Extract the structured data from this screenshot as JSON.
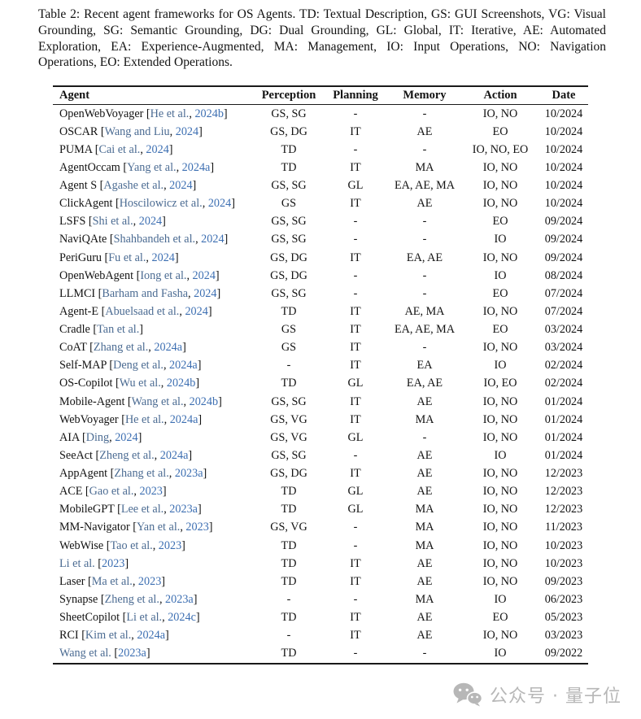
{
  "caption": "Table 2: Recent agent frameworks for OS Agents. TD: Textual Description, GS: GUI Screenshots, VG: Visual Grounding, SG: Semantic Grounding, DG: Dual Grounding, GL: Global, IT: Iterative, AE: Automated Exploration, EA: Experience-Augmented, MA: Management, IO: Input Operations, NO: Navigation Operations, EO: Extended Operations.",
  "colors": {
    "text": "#121212",
    "citation_author": "#4b6b92",
    "citation_year": "#3d6fb2",
    "rule": "#1a1a1a",
    "watermark": "#b7b7b7"
  },
  "table": {
    "columns": [
      "Agent",
      "Perception",
      "Planning",
      "Memory",
      "Action",
      "Date"
    ],
    "rows": [
      {
        "agent": [
          [
            "OpenWebVoyager [",
            "k"
          ],
          [
            "He et al.",
            "a"
          ],
          [
            ", ",
            "k"
          ],
          [
            "2024b",
            "y"
          ],
          [
            "]",
            "k"
          ]
        ],
        "perception": "GS, SG",
        "planning": "-",
        "memory": "-",
        "action": "IO, NO",
        "date": "10/2024"
      },
      {
        "agent": [
          [
            "OSCAR [",
            "k"
          ],
          [
            "Wang and Liu",
            "a"
          ],
          [
            ", ",
            "k"
          ],
          [
            "2024",
            "y"
          ],
          [
            "]",
            "k"
          ]
        ],
        "perception": "GS, DG",
        "planning": "IT",
        "memory": "AE",
        "action": "EO",
        "date": "10/2024"
      },
      {
        "agent": [
          [
            "PUMA [",
            "k"
          ],
          [
            "Cai et al.",
            "a"
          ],
          [
            ", ",
            "k"
          ],
          [
            "2024",
            "y"
          ],
          [
            "]",
            "k"
          ]
        ],
        "perception": "TD",
        "planning": "-",
        "memory": "-",
        "action": "IO, NO, EO",
        "date": "10/2024"
      },
      {
        "agent": [
          [
            "AgentOccam [",
            "k"
          ],
          [
            "Yang et al.",
            "a"
          ],
          [
            ", ",
            "k"
          ],
          [
            "2024a",
            "y"
          ],
          [
            "]",
            "k"
          ]
        ],
        "perception": "TD",
        "planning": "IT",
        "memory": "MA",
        "action": "IO, NO",
        "date": "10/2024"
      },
      {
        "agent": [
          [
            "Agent S [",
            "k"
          ],
          [
            "Agashe et al.",
            "a"
          ],
          [
            ", ",
            "k"
          ],
          [
            "2024",
            "y"
          ],
          [
            "]",
            "k"
          ]
        ],
        "perception": "GS, SG",
        "planning": "GL",
        "memory": "EA, AE, MA",
        "action": "IO, NO",
        "date": "10/2024"
      },
      {
        "agent": [
          [
            "ClickAgent [",
            "k"
          ],
          [
            "Hoscilowicz et al.",
            "a"
          ],
          [
            ", ",
            "k"
          ],
          [
            "2024",
            "y"
          ],
          [
            "]",
            "k"
          ]
        ],
        "perception": "GS",
        "planning": "IT",
        "memory": "AE",
        "action": "IO, NO",
        "date": "10/2024"
      },
      {
        "agent": [
          [
            "LSFS [",
            "k"
          ],
          [
            "Shi et al.",
            "a"
          ],
          [
            ", ",
            "k"
          ],
          [
            "2024",
            "y"
          ],
          [
            "]",
            "k"
          ]
        ],
        "perception": "GS, SG",
        "planning": "-",
        "memory": "-",
        "action": "EO",
        "date": "09/2024"
      },
      {
        "agent": [
          [
            "NaviQAte [",
            "k"
          ],
          [
            "Shahbandeh et al.",
            "a"
          ],
          [
            ", ",
            "k"
          ],
          [
            "2024",
            "y"
          ],
          [
            "]",
            "k"
          ]
        ],
        "perception": "GS, SG",
        "planning": "-",
        "memory": "-",
        "action": "IO",
        "date": "09/2024"
      },
      {
        "agent": [
          [
            "PeriGuru [",
            "k"
          ],
          [
            "Fu et al.",
            "a"
          ],
          [
            ", ",
            "k"
          ],
          [
            "2024",
            "y"
          ],
          [
            "]",
            "k"
          ]
        ],
        "perception": "GS, DG",
        "planning": "IT",
        "memory": "EA, AE",
        "action": "IO, NO",
        "date": "09/2024"
      },
      {
        "agent": [
          [
            "OpenWebAgent [",
            "k"
          ],
          [
            "Iong et al.",
            "a"
          ],
          [
            ", ",
            "k"
          ],
          [
            "2024",
            "y"
          ],
          [
            "]",
            "k"
          ]
        ],
        "perception": "GS, DG",
        "planning": "-",
        "memory": "-",
        "action": "IO",
        "date": "08/2024"
      },
      {
        "agent": [
          [
            "LLMCI [",
            "k"
          ],
          [
            "Barham and Fasha",
            "a"
          ],
          [
            ", ",
            "k"
          ],
          [
            "2024",
            "y"
          ],
          [
            "]",
            "k"
          ]
        ],
        "perception": "GS, SG",
        "planning": "-",
        "memory": "-",
        "action": "EO",
        "date": "07/2024"
      },
      {
        "agent": [
          [
            "Agent-E [",
            "k"
          ],
          [
            "Abuelsaad et al.",
            "a"
          ],
          [
            ", ",
            "k"
          ],
          [
            "2024",
            "y"
          ],
          [
            "]",
            "k"
          ]
        ],
        "perception": "TD",
        "planning": "IT",
        "memory": "AE, MA",
        "action": "IO, NO",
        "date": "07/2024"
      },
      {
        "agent": [
          [
            "Cradle [",
            "k"
          ],
          [
            "Tan et al.",
            "a"
          ],
          [
            "]",
            "k"
          ]
        ],
        "perception": "GS",
        "planning": "IT",
        "memory": "EA, AE, MA",
        "action": "EO",
        "date": "03/2024"
      },
      {
        "agent": [
          [
            "CoAT [",
            "k"
          ],
          [
            "Zhang et al.",
            "a"
          ],
          [
            ", ",
            "k"
          ],
          [
            "2024a",
            "y"
          ],
          [
            "]",
            "k"
          ]
        ],
        "perception": "GS",
        "planning": "IT",
        "memory": "-",
        "action": "IO, NO",
        "date": "03/2024"
      },
      {
        "agent": [
          [
            "Self-MAP [",
            "k"
          ],
          [
            "Deng et al.",
            "a"
          ],
          [
            ", ",
            "k"
          ],
          [
            "2024a",
            "y"
          ],
          [
            "]",
            "k"
          ]
        ],
        "perception": "-",
        "planning": "IT",
        "memory": "EA",
        "action": "IO",
        "date": "02/2024"
      },
      {
        "agent": [
          [
            "OS-Copilot [",
            "k"
          ],
          [
            "Wu et al.",
            "a"
          ],
          [
            ", ",
            "k"
          ],
          [
            "2024b",
            "y"
          ],
          [
            "]",
            "k"
          ]
        ],
        "perception": "TD",
        "planning": "GL",
        "memory": "EA, AE",
        "action": "IO, EO",
        "date": "02/2024"
      },
      {
        "agent": [
          [
            "Mobile-Agent [",
            "k"
          ],
          [
            "Wang et al.",
            "a"
          ],
          [
            ", ",
            "k"
          ],
          [
            "2024b",
            "y"
          ],
          [
            "]",
            "k"
          ]
        ],
        "perception": "GS, SG",
        "planning": "IT",
        "memory": "AE",
        "action": "IO, NO",
        "date": "01/2024"
      },
      {
        "agent": [
          [
            "WebVoyager [",
            "k"
          ],
          [
            "He et al.",
            "a"
          ],
          [
            ", ",
            "k"
          ],
          [
            "2024a",
            "y"
          ],
          [
            "]",
            "k"
          ]
        ],
        "perception": "GS, VG",
        "planning": "IT",
        "memory": "MA",
        "action": "IO, NO",
        "date": "01/2024"
      },
      {
        "agent": [
          [
            "AIA [",
            "k"
          ],
          [
            "Ding",
            "a"
          ],
          [
            ", ",
            "k"
          ],
          [
            "2024",
            "y"
          ],
          [
            "]",
            "k"
          ]
        ],
        "perception": "GS, VG",
        "planning": "GL",
        "memory": "-",
        "action": "IO, NO",
        "date": "01/2024"
      },
      {
        "agent": [
          [
            "SeeAct [",
            "k"
          ],
          [
            "Zheng et al.",
            "a"
          ],
          [
            ", ",
            "k"
          ],
          [
            "2024a",
            "y"
          ],
          [
            "]",
            "k"
          ]
        ],
        "perception": "GS, SG",
        "planning": "-",
        "memory": "AE",
        "action": "IO",
        "date": "01/2024"
      },
      {
        "agent": [
          [
            "AppAgent [",
            "k"
          ],
          [
            "Zhang et al.",
            "a"
          ],
          [
            ", ",
            "k"
          ],
          [
            "2023a",
            "y"
          ],
          [
            "]",
            "k"
          ]
        ],
        "perception": "GS, DG",
        "planning": "IT",
        "memory": "AE",
        "action": "IO, NO",
        "date": "12/2023"
      },
      {
        "agent": [
          [
            "ACE [",
            "k"
          ],
          [
            "Gao et al.",
            "a"
          ],
          [
            ", ",
            "k"
          ],
          [
            "2023",
            "y"
          ],
          [
            "]",
            "k"
          ]
        ],
        "perception": "TD",
        "planning": "GL",
        "memory": "AE",
        "action": "IO, NO",
        "date": "12/2023"
      },
      {
        "agent": [
          [
            "MobileGPT [",
            "k"
          ],
          [
            "Lee et al.",
            "a"
          ],
          [
            ", ",
            "k"
          ],
          [
            "2023a",
            "y"
          ],
          [
            "]",
            "k"
          ]
        ],
        "perception": "TD",
        "planning": "GL",
        "memory": "MA",
        "action": "IO, NO",
        "date": "12/2023"
      },
      {
        "agent": [
          [
            "MM-Navigator [",
            "k"
          ],
          [
            "Yan et al.",
            "a"
          ],
          [
            ", ",
            "k"
          ],
          [
            "2023",
            "y"
          ],
          [
            "]",
            "k"
          ]
        ],
        "perception": "GS, VG",
        "planning": "-",
        "memory": "MA",
        "action": "IO, NO",
        "date": "11/2023"
      },
      {
        "agent": [
          [
            "WebWise [",
            "k"
          ],
          [
            "Tao et al.",
            "a"
          ],
          [
            ", ",
            "k"
          ],
          [
            "2023",
            "y"
          ],
          [
            "]",
            "k"
          ]
        ],
        "perception": "TD",
        "planning": "-",
        "memory": "MA",
        "action": "IO, NO",
        "date": "10/2023"
      },
      {
        "agent": [
          [
            "Li et al.",
            "a"
          ],
          [
            " [",
            "k"
          ],
          [
            "2023",
            "y"
          ],
          [
            "]",
            "k"
          ]
        ],
        "perception": "TD",
        "planning": "IT",
        "memory": "AE",
        "action": "IO, NO",
        "date": "10/2023"
      },
      {
        "agent": [
          [
            "Laser [",
            "k"
          ],
          [
            "Ma et al.",
            "a"
          ],
          [
            ", ",
            "k"
          ],
          [
            "2023",
            "y"
          ],
          [
            "]",
            "k"
          ]
        ],
        "perception": "TD",
        "planning": "IT",
        "memory": "AE",
        "action": "IO, NO",
        "date": "09/2023"
      },
      {
        "agent": [
          [
            "Synapse [",
            "k"
          ],
          [
            "Zheng et al.",
            "a"
          ],
          [
            ", ",
            "k"
          ],
          [
            "2023a",
            "y"
          ],
          [
            "]",
            "k"
          ]
        ],
        "perception": "-",
        "planning": "-",
        "memory": "MA",
        "action": "IO",
        "date": "06/2023"
      },
      {
        "agent": [
          [
            "SheetCopilot [",
            "k"
          ],
          [
            "Li et al.",
            "a"
          ],
          [
            ", ",
            "k"
          ],
          [
            "2024c",
            "y"
          ],
          [
            "]",
            "k"
          ]
        ],
        "perception": "TD",
        "planning": "IT",
        "memory": "AE",
        "action": "EO",
        "date": "05/2023"
      },
      {
        "agent": [
          [
            "RCI [",
            "k"
          ],
          [
            "Kim et al.",
            "a"
          ],
          [
            ", ",
            "k"
          ],
          [
            "2024a",
            "y"
          ],
          [
            "]",
            "k"
          ]
        ],
        "perception": "-",
        "planning": "IT",
        "memory": "AE",
        "action": "IO, NO",
        "date": "03/2023"
      },
      {
        "agent": [
          [
            "Wang et al.",
            "a"
          ],
          [
            " [",
            "k"
          ],
          [
            "2023a",
            "y"
          ],
          [
            "]",
            "k"
          ]
        ],
        "perception": "TD",
        "planning": "-",
        "memory": "-",
        "action": "IO",
        "date": "09/2022"
      }
    ]
  },
  "watermark": {
    "text": "公众号 · 量子位",
    "icon": "wechat-icon"
  }
}
